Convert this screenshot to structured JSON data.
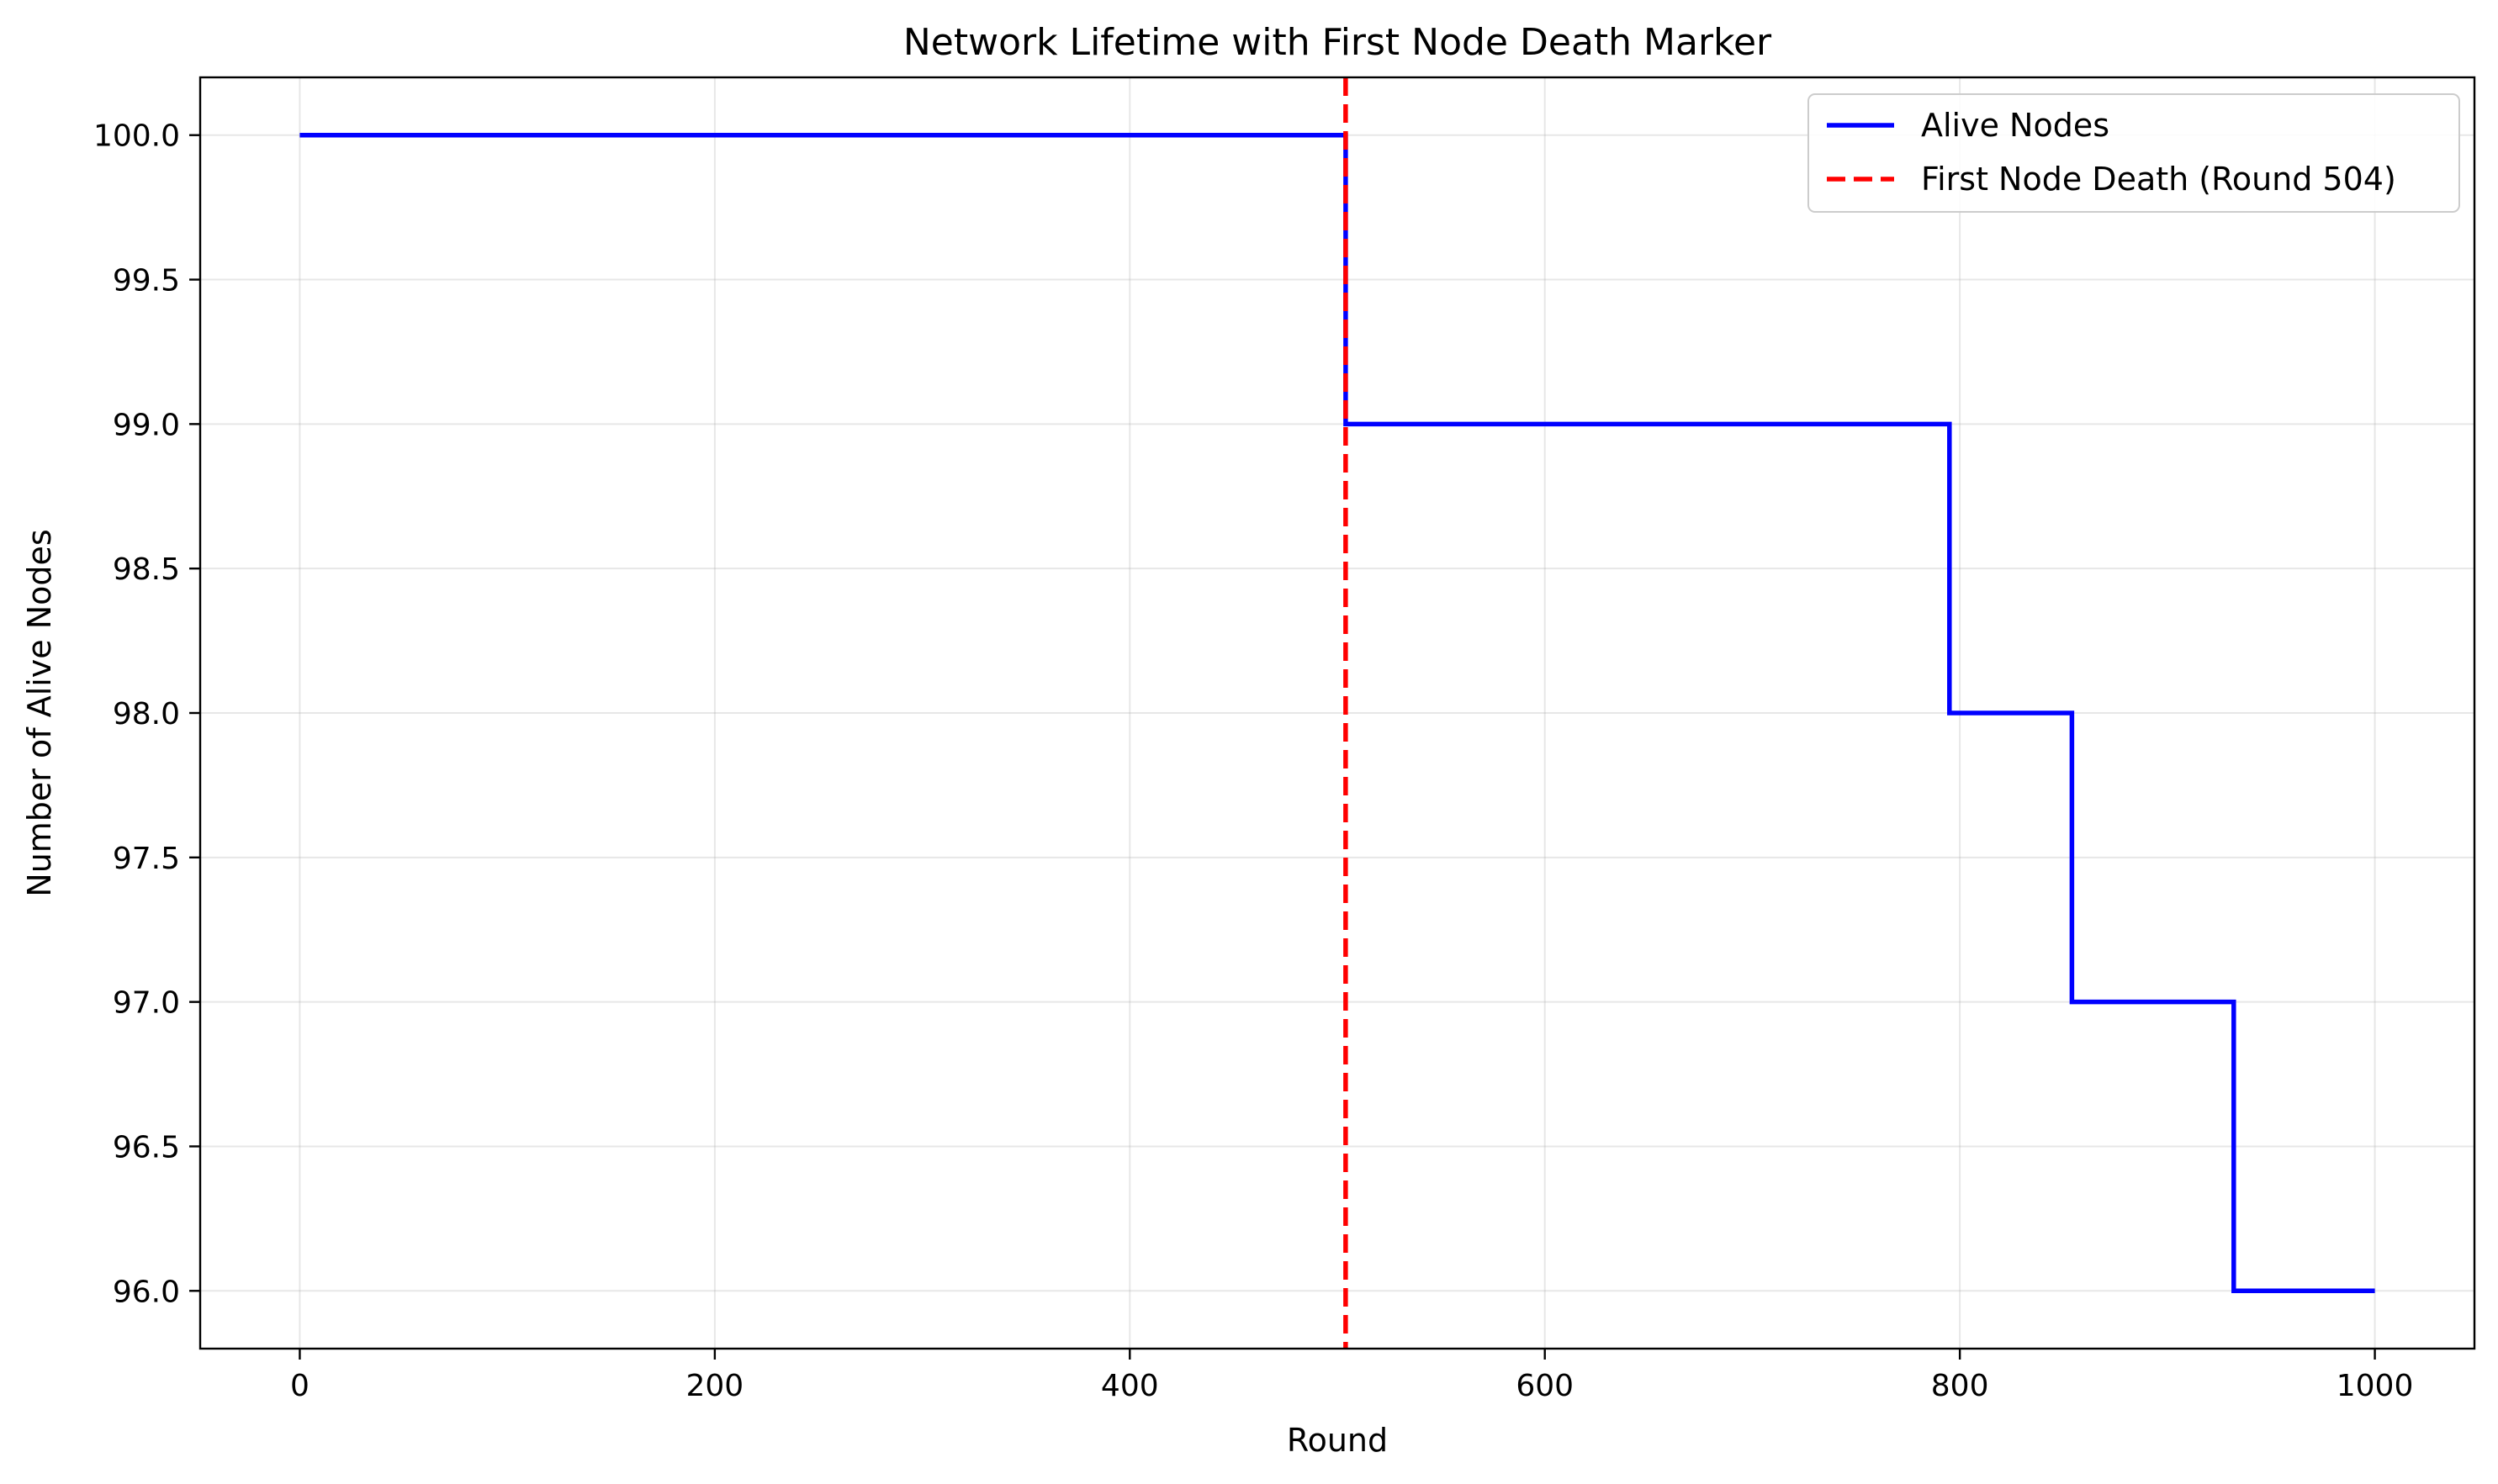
{
  "chart_data": {
    "type": "line",
    "title": "Network Lifetime with First Node Death Marker",
    "xlabel": "Round",
    "ylabel": "Number of Alive Nodes",
    "xlim": [
      -48,
      1048
    ],
    "ylim": [
      95.8,
      100.2
    ],
    "xticks": [
      0,
      200,
      400,
      600,
      800,
      1000
    ],
    "xtick_labels": [
      "0",
      "200",
      "400",
      "600",
      "800",
      "1000"
    ],
    "yticks": [
      96.0,
      96.5,
      97.0,
      97.5,
      98.0,
      98.5,
      99.0,
      99.5,
      100.0
    ],
    "ytick_labels": [
      "96.0",
      "96.5",
      "97.0",
      "97.5",
      "98.0",
      "98.5",
      "99.0",
      "99.5",
      "100.0"
    ],
    "grid": true,
    "legend_position": "top-right",
    "series": [
      {
        "name": "Alive Nodes",
        "style": "step",
        "color": "#0000ff",
        "x": [
          0,
          504,
          504,
          795,
          795,
          854,
          854,
          932,
          932,
          1000
        ],
        "y": [
          100,
          100,
          99,
          99,
          98,
          98,
          97,
          97,
          96,
          96
        ]
      }
    ],
    "reference_lines": [
      {
        "name": "First Node Death (Round 504)",
        "orientation": "vertical",
        "x": 504,
        "color": "#ff0000",
        "style": "dashed"
      }
    ]
  }
}
